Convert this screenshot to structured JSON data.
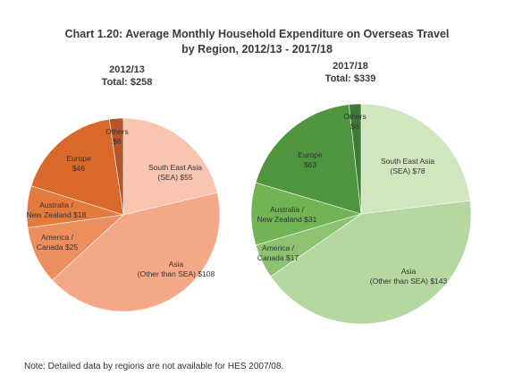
{
  "title_line1": "Chart 1.20: Average Monthly Household Expenditure on Overseas Travel",
  "title_line2": "by Region, 2012/13 - 2017/18",
  "note": "Note: Detailed data by regions are not available for HES 2007/08.",
  "chart_data": [
    {
      "type": "pie",
      "title": "2012/13",
      "subtitle": "Total: $258",
      "slices": [
        {
          "label_lines": [
            "South East Asia",
            "(SEA) $55"
          ],
          "value": 55,
          "color": "#f9c4b0"
        },
        {
          "label_lines": [
            "Asia",
            "(Other than SEA) $108"
          ],
          "value": 108,
          "color": "#f4a888"
        },
        {
          "label_lines": [
            "America /",
            "Canada $25"
          ],
          "value": 25,
          "color": "#ec8e5e"
        },
        {
          "label_lines": [
            "Australia /",
            "New Zealand $18"
          ],
          "value": 18,
          "color": "#e37a3e"
        },
        {
          "label_lines": [
            "Europe",
            "$46"
          ],
          "value": 46,
          "color": "#d9692a"
        },
        {
          "label_lines": [
            "Others",
            "$6"
          ],
          "value": 6,
          "color": "#b7552a"
        }
      ]
    },
    {
      "type": "pie",
      "title": "2017/18",
      "subtitle": "Total: $339",
      "slices": [
        {
          "label_lines": [
            "South East Asia",
            "(SEA) $78"
          ],
          "value": 78,
          "color": "#cfe6bf"
        },
        {
          "label_lines": [
            "Asia",
            "(Other than SEA) $143"
          ],
          "value": 143,
          "color": "#b5d8a0"
        },
        {
          "label_lines": [
            "America /",
            "Canada $17"
          ],
          "value": 17,
          "color": "#8cc271"
        },
        {
          "label_lines": [
            "Australia /",
            "New Zealand $31"
          ],
          "value": 31,
          "color": "#72b354"
        },
        {
          "label_lines": [
            "Europe",
            "$63"
          ],
          "value": 63,
          "color": "#4f9540"
        },
        {
          "label_lines": [
            "Others",
            "$6"
          ],
          "value": 6,
          "color": "#3d7a34"
        }
      ]
    }
  ]
}
